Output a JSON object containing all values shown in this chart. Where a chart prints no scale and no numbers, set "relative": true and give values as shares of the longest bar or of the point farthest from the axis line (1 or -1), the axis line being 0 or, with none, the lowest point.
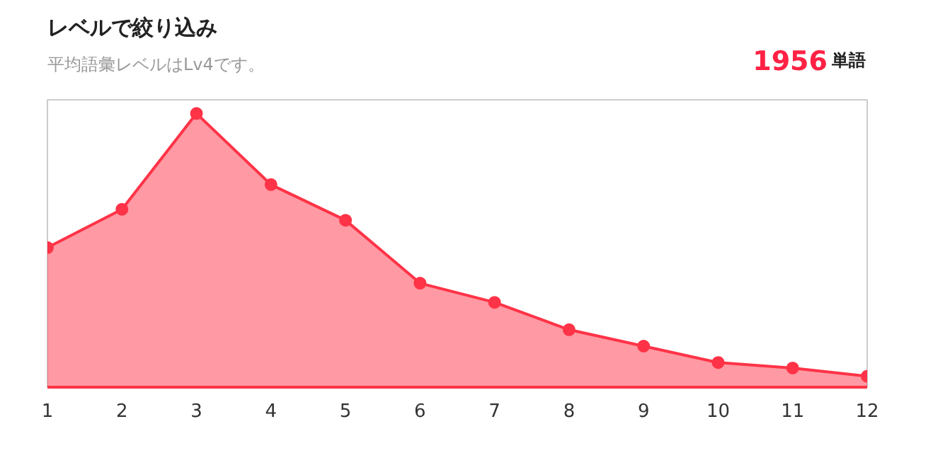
{
  "chart_data": {
    "type": "area",
    "title": "レベルで絞り込み",
    "subtitle": "平均語彙レベルはLv4です。",
    "annotations": [
      "1956",
      "単語"
    ],
    "x": [
      1,
      2,
      3,
      4,
      5,
      6,
      7,
      8,
      9,
      10,
      11,
      12
    ],
    "xlim": [
      1,
      12
    ],
    "xticks": [
      1,
      2,
      3,
      4,
      5,
      6,
      7,
      8,
      9,
      10,
      11,
      12
    ],
    "relative": true,
    "tick_labels": "x",
    "grid": false,
    "marker": "circle",
    "line_style": "solid",
    "series": [
      {
        "color": "#ff3347",
        "values": [
          0.51,
          0.65,
          1,
          0.74,
          0.61,
          0.38,
          0.31,
          0.21,
          0.15,
          0.09,
          0.07,
          0.04
        ]
      }
    ]
  }
}
